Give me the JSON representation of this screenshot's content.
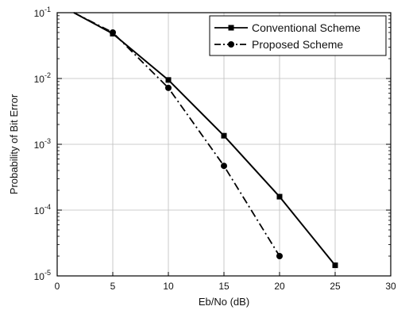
{
  "chart_data": {
    "type": "line",
    "xlabel": "Eb/No (dB)",
    "ylabel": "Probability of Bit Error",
    "xlim": [
      0,
      30
    ],
    "ylim": [
      1e-05,
      0.1
    ],
    "yscale": "log",
    "grid": true,
    "legend_position": "top-right",
    "x_ticks": [
      "0",
      "5",
      "10",
      "15",
      "20",
      "25",
      "30"
    ],
    "y_ticks": [
      {
        "base": "10",
        "exp": "-1"
      },
      {
        "base": "10",
        "exp": "-2"
      },
      {
        "base": "10",
        "exp": "-3"
      },
      {
        "base": "10",
        "exp": "-4"
      },
      {
        "base": "10",
        "exp": "-5"
      }
    ],
    "series": [
      {
        "name": "Conventional Scheme",
        "style": "solid",
        "marker": "square",
        "color": "#000000",
        "x": [
          1.5,
          5,
          10,
          15,
          20,
          25
        ],
        "y": [
          0.1,
          0.048,
          0.0095,
          0.00135,
          0.00016,
          1.45e-05
        ],
        "markers_x": [
          5,
          10,
          15,
          20,
          25
        ],
        "markers_y": [
          0.048,
          0.0095,
          0.00135,
          0.00016,
          1.45e-05
        ]
      },
      {
        "name": "Proposed Scheme",
        "style": "dashdot",
        "marker": "circle",
        "color": "#000000",
        "x": [
          1.5,
          5,
          10,
          15,
          20
        ],
        "y": [
          0.1,
          0.05,
          0.0072,
          0.00047,
          2e-05
        ],
        "markers_x": [
          5,
          10,
          15,
          20
        ],
        "markers_y": [
          0.05,
          0.0072,
          0.00047,
          2e-05
        ]
      }
    ]
  }
}
